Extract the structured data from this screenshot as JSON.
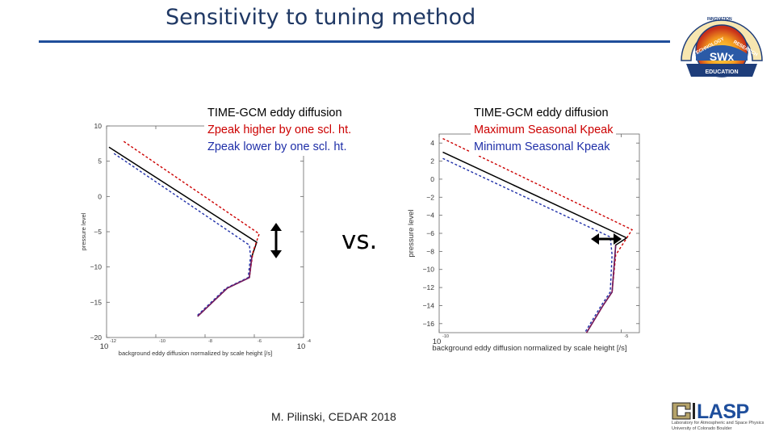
{
  "slide": {
    "title": "Sensitivity to tuning method",
    "vs_label": "vs.",
    "footer": "M. Pilinski, CEDAR 2018",
    "logo_top": {
      "name": "SWx TREC logo",
      "center_text": "SWx",
      "bottom_text": "EDUCATION",
      "ring_words": [
        "TECHNOLOGY",
        "RESEARCH",
        "INNOVATION"
      ]
    },
    "logo_bottom": {
      "name": "CU Boulder LASP logo",
      "main_text": "LASP",
      "sub_lines": [
        "Laboratory for Atmospheric and Space Physics",
        "University of Colorado Boulder"
      ]
    },
    "colors": {
      "title": "#1f3864",
      "rule": "#1f4e9a",
      "black": "#000000",
      "red": "#cc0000",
      "blue": "#1f2fa8",
      "purple": "#7a1f6e"
    }
  },
  "chart_data": [
    {
      "type": "line",
      "title": "",
      "xlabel": "background eddy diffusion normalized by scale height [/s]",
      "ylabel": "pressure level",
      "xscale": "log",
      "xlim": [
        -12,
        -4
      ],
      "ylim": [
        -20,
        10
      ],
      "x_tick_labels": [
        {
          "base": "10",
          "exp": "-12",
          "log": -12
        },
        {
          "base": "",
          "exp": "-10",
          "log": -10
        },
        {
          "base": "",
          "exp": "-8",
          "log": -8
        },
        {
          "base": "",
          "exp": "-6",
          "log": -6
        },
        {
          "base": "10",
          "exp": "-4",
          "log": -4
        }
      ],
      "y_ticks": [
        10,
        5,
        0,
        -5,
        -10,
        -15,
        -20
      ],
      "y_tick_labels": [
        "10",
        "5",
        "0",
        "−5",
        "−10",
        "−15",
        "−20"
      ],
      "legend": {
        "placement": "top-center",
        "entries": [
          {
            "label": "TIME-GCM eddy diffusion",
            "color": "#000000",
            "style": "solid"
          },
          {
            "label": "Zpeak higher by one scl. ht.",
            "color": "#cc0000",
            "style": "dashed"
          },
          {
            "label": "Zpeak lower by one scl. ht.",
            "color": "#1f2fa8",
            "style": "dashed"
          }
        ]
      },
      "series": [
        {
          "name": "TIME-GCM eddy diffusion",
          "color": "#000000",
          "dash": false,
          "points": [
            [
              -11.9,
              7
            ],
            [
              -5.9,
              -6.5
            ],
            [
              -6.1,
              -8.5
            ],
            [
              -6.2,
              -11.5
            ],
            [
              -7.1,
              -13
            ],
            [
              -8.3,
              -17
            ]
          ]
        },
        {
          "name": "Zpeak higher by one scl. ht.",
          "color": "#cc0000",
          "dash": true,
          "points": [
            [
              -11.3,
              7.8
            ],
            [
              -5.8,
              -5.3
            ],
            [
              -6.05,
              -7.8
            ],
            [
              -6.2,
              -11.5
            ],
            [
              -7.1,
              -13
            ],
            [
              -8.3,
              -17
            ]
          ]
        },
        {
          "name": "Zpeak lower by one scl. ht.",
          "color": "#1f2fa8",
          "dash": true,
          "points": [
            [
              -11.7,
              6.1
            ],
            [
              -6.2,
              -6.9
            ],
            [
              -6.15,
              -8.5
            ],
            [
              -6.25,
              -11.5
            ],
            [
              -7.15,
              -13
            ],
            [
              -8.35,
              -17
            ]
          ]
        }
      ],
      "annotation": "vertical double-headed arrow (peak shifted in altitude)"
    },
    {
      "type": "line",
      "title": "",
      "xlabel": "background eddy diffusion normalized by scale height [/s]",
      "ylabel": "pressure level",
      "xscale": "log",
      "xlim": [
        -10,
        -4.5
      ],
      "ylim": [
        -17,
        5
      ],
      "x_tick_labels": [
        {
          "base": "10",
          "exp": "-10",
          "log": -10
        },
        {
          "base": "",
          "exp": "-5",
          "log": -5
        }
      ],
      "y_ticks": [
        4,
        2,
        0,
        -2,
        -4,
        -6,
        -8,
        -10,
        -12,
        -14,
        -16
      ],
      "y_tick_labels": [
        "4",
        "2",
        "0",
        "−2",
        "−4",
        "−6",
        "−8",
        "−10",
        "−12",
        "−14",
        "−16"
      ],
      "legend": {
        "placement": "top-right",
        "entries": [
          {
            "label": "TIME-GCM eddy diffusion",
            "color": "#000000",
            "style": "solid"
          },
          {
            "label": "Maximum Seasonal Kpeak",
            "color": "#cc0000",
            "style": "dashed"
          },
          {
            "label": "Minimum Seasonal Kpeak",
            "color": "#1f2fa8",
            "style": "dashed"
          }
        ]
      },
      "series": [
        {
          "name": "TIME-GCM eddy diffusion",
          "color": "#000000",
          "dash": false,
          "points": [
            [
              -9.9,
              3
            ],
            [
              -4.85,
              -6.5
            ],
            [
              -5.15,
              -7.3
            ],
            [
              -5.25,
              -12.5
            ],
            [
              -5.5,
              -14
            ],
            [
              -5.95,
              -17
            ]
          ]
        },
        {
          "name": "Maximum Seasonal Kpeak",
          "color": "#cc0000",
          "dash": true,
          "points": [
            [
              -9.9,
              4.5
            ],
            [
              -4.7,
              -5.6
            ],
            [
              -5.15,
              -8.4
            ],
            [
              -5.25,
              -12.5
            ],
            [
              -5.5,
              -14
            ],
            [
              -5.95,
              -17
            ]
          ]
        },
        {
          "name": "Minimum Seasonal Kpeak",
          "color": "#1f2fa8",
          "dash": true,
          "points": [
            [
              -9.9,
              2.3
            ],
            [
              -5.3,
              -6.4
            ],
            [
              -5.25,
              -8.4
            ],
            [
              -5.3,
              -12.5
            ],
            [
              -5.55,
              -14
            ],
            [
              -6.0,
              -17
            ]
          ]
        }
      ],
      "annotation": "horizontal double-headed arrow (peak shifted in magnitude)"
    }
  ]
}
